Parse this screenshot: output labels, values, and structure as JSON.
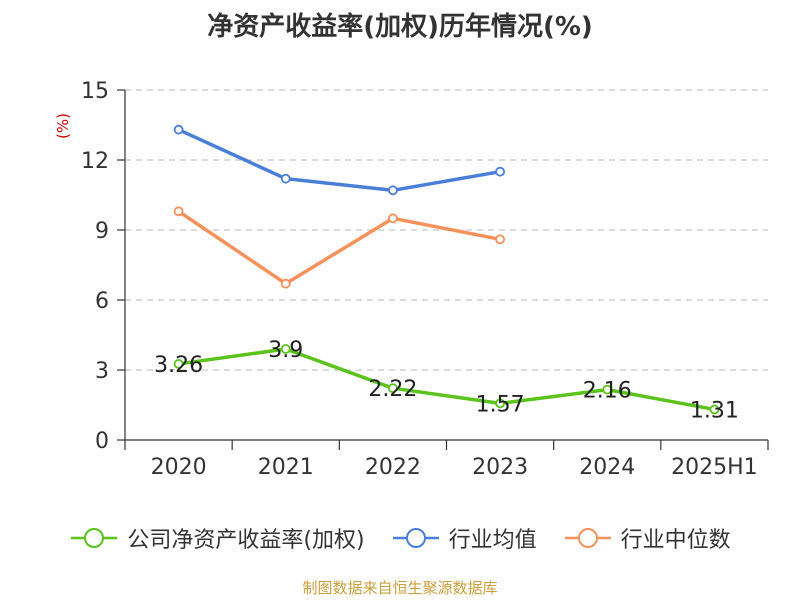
{
  "title": "净资产收益率(加权)历年情况(%)",
  "source_note": "制图数据来自恒生聚源数据库",
  "chart_data": {
    "type": "line",
    "title": "净资产收益率(加权)历年情况(%)",
    "ylabel": "(%)",
    "xlabel": "",
    "categories": [
      "2020",
      "2021",
      "2022",
      "2023",
      "2024",
      "2025H1"
    ],
    "ylim": [
      0,
      15
    ],
    "yticks": [
      0,
      3,
      6,
      9,
      12,
      15
    ],
    "grid": true,
    "legend_position": "bottom",
    "series": [
      {
        "name": "公司净资产收益率(加权)",
        "color": "#5cc31d",
        "values": [
          3.26,
          3.9,
          2.22,
          1.57,
          2.16,
          1.31
        ],
        "show_labels": true
      },
      {
        "name": "行业均值",
        "color": "#4a7fd8",
        "values": [
          13.3,
          11.2,
          10.7,
          11.5,
          null,
          null
        ],
        "show_labels": false
      },
      {
        "name": "行业中位数",
        "color": "#f5915a",
        "values": [
          9.8,
          6.7,
          9.5,
          8.6,
          null,
          null
        ],
        "show_labels": false
      }
    ]
  }
}
